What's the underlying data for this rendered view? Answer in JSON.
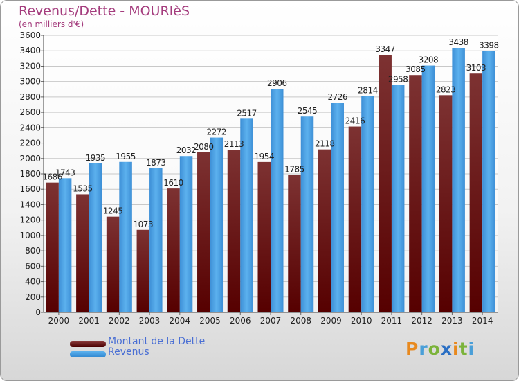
{
  "title": "Revenus/Dette - MOURIèS",
  "subtitle": "(en milliers d'€)",
  "logo": "Proxiti",
  "colors": {
    "debt": "#7a1a1a",
    "revenue": "#3a9be0",
    "title": "#a43c7d",
    "legend_text": "#4a6fd4"
  },
  "chart_data": {
    "type": "bar",
    "title": "Revenus/Dette - MOURIèS",
    "ylabel": "(en milliers d'€)",
    "xlabel": "",
    "categories": [
      "2000",
      "2001",
      "2002",
      "2003",
      "2004",
      "2005",
      "2006",
      "2007",
      "2008",
      "2009",
      "2010",
      "2011",
      "2012",
      "2013",
      "2014"
    ],
    "ylim": [
      0,
      3600
    ],
    "yticks": [
      0,
      200,
      400,
      600,
      800,
      1000,
      1200,
      1400,
      1600,
      1800,
      2000,
      2200,
      2400,
      2600,
      2800,
      3000,
      3200,
      3400,
      3600
    ],
    "grid": true,
    "legend_position": "bottom-left",
    "series": [
      {
        "name": "Montant de la Dette",
        "values": [
          1686,
          1535,
          1245,
          1073,
          1610,
          2080,
          2113,
          1954,
          1785,
          2118,
          2416,
          3347,
          3085,
          2823,
          3103
        ],
        "labels": [
          "1686",
          "1535",
          "1245",
          "1073",
          "1610",
          "2080",
          "2113",
          "1954",
          "1785",
          "2118",
          "2416",
          "3347",
          "3085",
          "2823",
          "3103"
        ]
      },
      {
        "name": "Revenus",
        "values": [
          1743,
          1935,
          1955,
          1873,
          2032,
          2272,
          2517,
          2906,
          2545,
          2726,
          2814,
          2958,
          3208,
          3438,
          3398
        ],
        "labels": [
          "1743",
          "1935",
          "1955",
          "1873",
          "2032",
          "2272",
          "2517",
          "2906",
          "2545",
          "2726",
          "2814",
          "2958",
          "3208",
          "3438",
          "3398"
        ]
      }
    ]
  }
}
